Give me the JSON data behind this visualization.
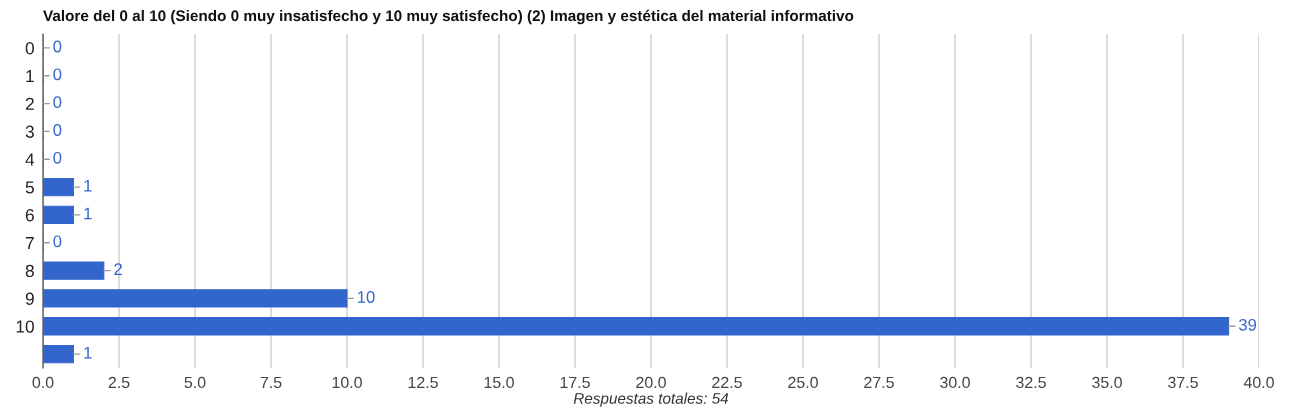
{
  "chart_data": {
    "type": "bar",
    "orientation": "horizontal",
    "title": "Valore del 0 al 10 (Siendo 0 muy insatisfecho y 10 muy satisfecho) (2) Imagen y estética del material informativo",
    "xlabel": "Respuestas totales: 54",
    "categories": [
      "0",
      "1",
      "2",
      "3",
      "4",
      "5",
      "6",
      "7",
      "8",
      "9",
      "10",
      null
    ],
    "values": [
      0,
      0,
      0,
      0,
      0,
      1,
      1,
      0,
      2,
      10,
      39,
      1
    ],
    "color": "#3366cc",
    "xlim": [
      0,
      40
    ],
    "xticks": [
      {
        "value": 0,
        "label": "0.0"
      },
      {
        "value": 2.5,
        "label": "2.5"
      },
      {
        "value": 5,
        "label": "5.0"
      },
      {
        "value": 7.5,
        "label": "7.5"
      },
      {
        "value": 10,
        "label": "10.0"
      },
      {
        "value": 12.5,
        "label": "12.5"
      },
      {
        "value": 15,
        "label": "15.0"
      },
      {
        "value": 17.5,
        "label": "17.5"
      },
      {
        "value": 20,
        "label": "20.0"
      },
      {
        "value": 22.5,
        "label": "22.5"
      },
      {
        "value": 25,
        "label": "25.0"
      },
      {
        "value": 27.5,
        "label": "27.5"
      },
      {
        "value": 30,
        "label": "30.0"
      },
      {
        "value": 32.5,
        "label": "32.5"
      },
      {
        "value": 35,
        "label": "35.0"
      },
      {
        "value": 37.5,
        "label": "37.5"
      },
      {
        "value": 40,
        "label": "40.0"
      }
    ],
    "grid": "x",
    "data_labels": true,
    "legend": false
  }
}
